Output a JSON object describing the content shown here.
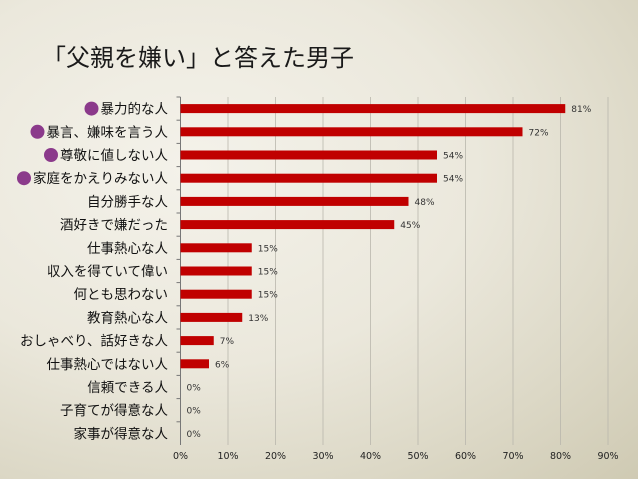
{
  "title": "「父親を嫌い」と答えた男子",
  "colors": {
    "bar": "#c00000",
    "marker": "#8b3a8b",
    "grid": "#b9b7ad"
  },
  "chart_data": {
    "type": "bar",
    "orientation": "horizontal",
    "title": "「父親を嫌い」と答えた男子",
    "categories": [
      "暴力的な人",
      "暴言、嫌味を言う人",
      "尊敬に値しない人",
      "家庭をかえりみない人",
      "自分勝手な人",
      "酒好きで嫌だった",
      "仕事熱心な人",
      "収入を得ていて偉い",
      "何とも思わない",
      "教育熱心な人",
      "おしゃべり、話好きな人",
      "仕事熱心ではない人",
      "信頼できる人",
      "子育てが得意な人",
      "家事が得意な人"
    ],
    "values": [
      81,
      72,
      54,
      54,
      48,
      45,
      15,
      15,
      15,
      13,
      7,
      6,
      0,
      0,
      0
    ],
    "value_labels": [
      "81%",
      "72%",
      "54%",
      "54%",
      "48%",
      "45%",
      "15%",
      "15%",
      "15%",
      "13%",
      "7%",
      "6%",
      "0%",
      "0%",
      "0%"
    ],
    "highlighted": [
      true,
      true,
      true,
      true,
      false,
      false,
      false,
      false,
      false,
      false,
      false,
      false,
      false,
      false,
      false
    ],
    "x_ticks": [
      "0%",
      "10%",
      "20%",
      "30%",
      "40%",
      "50%",
      "60%",
      "70%",
      "80%",
      "90%"
    ],
    "xlim": [
      0,
      90
    ],
    "grid": true
  }
}
